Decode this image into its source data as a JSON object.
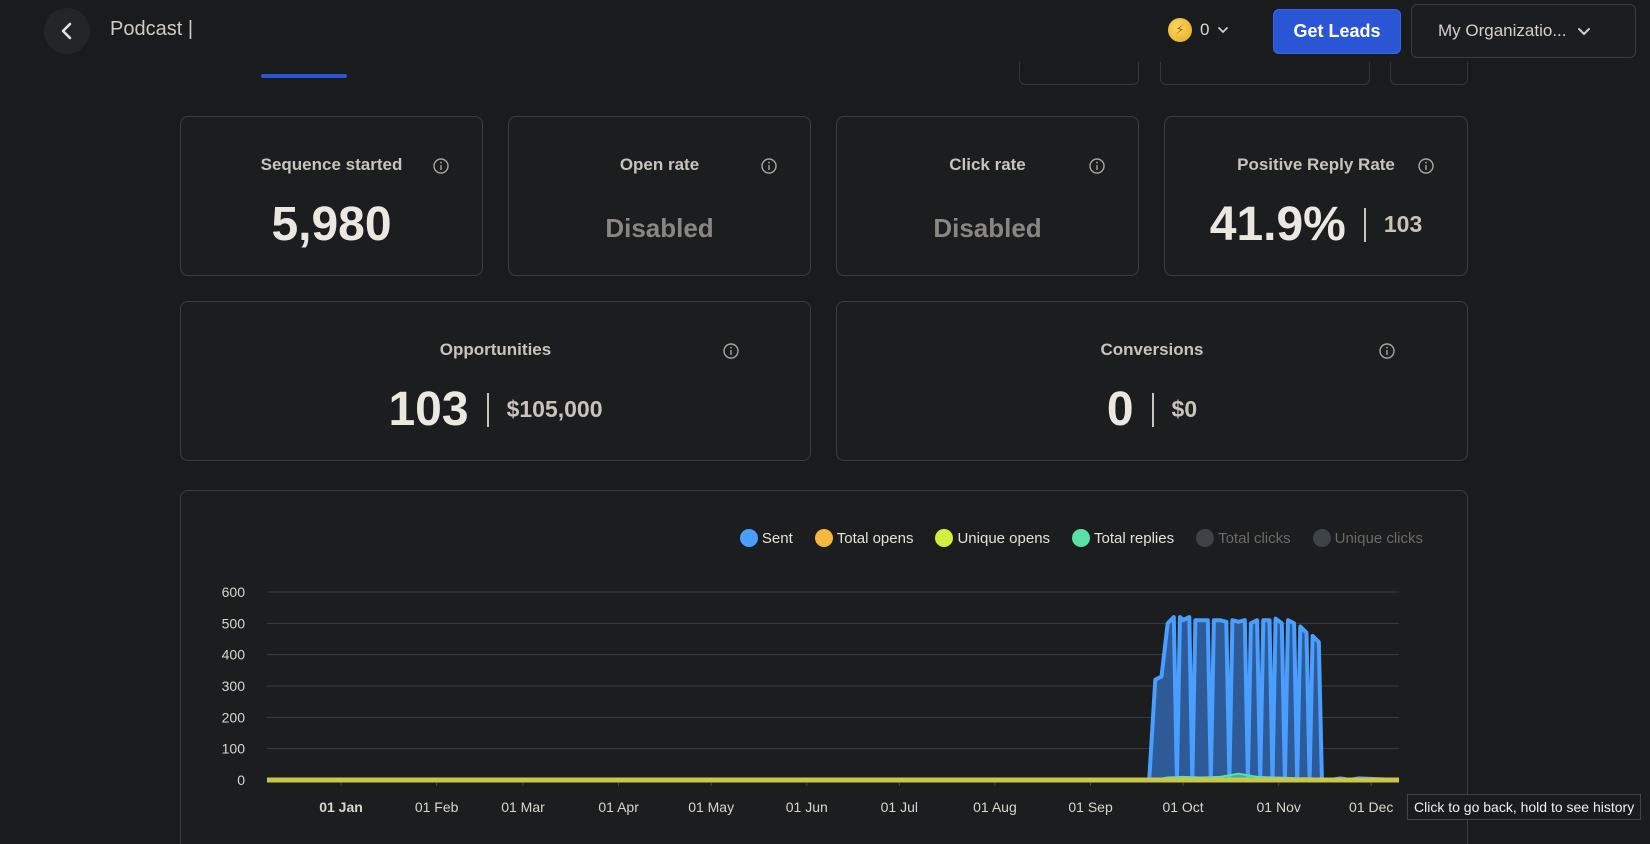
{
  "header": {
    "title": "Podcast |",
    "credits": "0",
    "get_leads_label": "Get Leads",
    "org_label": "My Organizatio..."
  },
  "cards": {
    "sequence_started": {
      "label": "Sequence started",
      "value": "5,980"
    },
    "open_rate": {
      "label": "Open rate",
      "value": "Disabled"
    },
    "click_rate": {
      "label": "Click rate",
      "value": "Disabled"
    },
    "positive_reply_rate": {
      "label": "Positive Reply Rate",
      "value": "41.9%",
      "sub": "103"
    },
    "opportunities": {
      "label": "Opportunities",
      "value": "103",
      "sub": "$105,000"
    },
    "conversions": {
      "label": "Conversions",
      "value": "0",
      "sub": "$0"
    }
  },
  "legend": [
    {
      "label": "Sent",
      "color": "#4a9eff",
      "active": true
    },
    {
      "label": "Total opens",
      "color": "#f5b942",
      "active": true
    },
    {
      "label": "Unique opens",
      "color": "#d4ee3e",
      "active": true
    },
    {
      "label": "Total replies",
      "color": "#58e0a6",
      "active": true
    },
    {
      "label": "Total clicks",
      "color": "#3d4347",
      "active": false
    },
    {
      "label": "Unique clicks",
      "color": "#3d4347",
      "active": false
    }
  ],
  "chart_data": {
    "type": "area",
    "y_ticks": [
      0,
      100,
      200,
      300,
      400,
      500,
      600
    ],
    "ylim": [
      0,
      600
    ],
    "x_ticks": [
      "01 Jan",
      "01 Feb",
      "01 Mar",
      "01 Apr",
      "01 May",
      "01 Jun",
      "01 Jul",
      "01 Aug",
      "01 Sep",
      "01 Oct",
      "01 Nov",
      "01 Dec"
    ],
    "x_days": [
      0,
      31,
      59,
      90,
      120,
      151,
      181,
      212,
      243,
      273,
      304,
      334
    ],
    "xlim_days": [
      -24,
      343
    ],
    "series": [
      {
        "name": "Sent",
        "points": [
          [
            0,
            0
          ],
          [
            262,
            0
          ],
          [
            264,
            320
          ],
          [
            266,
            330
          ],
          [
            268,
            500
          ],
          [
            270,
            520
          ],
          [
            271,
            0
          ],
          [
            272,
            520
          ],
          [
            273,
            510
          ],
          [
            275,
            520
          ],
          [
            276,
            0
          ],
          [
            277,
            510
          ],
          [
            279,
            510
          ],
          [
            281,
            510
          ],
          [
            282,
            0
          ],
          [
            283,
            510
          ],
          [
            285,
            510
          ],
          [
            287,
            505
          ],
          [
            288,
            0
          ],
          [
            289,
            510
          ],
          [
            291,
            505
          ],
          [
            293,
            510
          ],
          [
            294,
            0
          ],
          [
            295,
            500
          ],
          [
            297,
            510
          ],
          [
            298,
            0
          ],
          [
            299,
            510
          ],
          [
            301,
            510
          ],
          [
            302,
            0
          ],
          [
            303,
            515
          ],
          [
            305,
            500
          ],
          [
            306,
            0
          ],
          [
            307,
            510
          ],
          [
            309,
            500
          ],
          [
            310,
            0
          ],
          [
            311,
            490
          ],
          [
            313,
            470
          ],
          [
            314,
            0
          ],
          [
            315,
            460
          ],
          [
            317,
            440
          ],
          [
            318,
            0
          ],
          [
            321,
            0
          ],
          [
            324,
            5
          ],
          [
            327,
            0
          ],
          [
            330,
            5
          ],
          [
            343,
            0
          ]
        ]
      },
      {
        "name": "Total replies",
        "points": [
          [
            0,
            0
          ],
          [
            263,
            0
          ],
          [
            268,
            8
          ],
          [
            273,
            10
          ],
          [
            279,
            8
          ],
          [
            285,
            10
          ],
          [
            291,
            20
          ],
          [
            297,
            10
          ],
          [
            303,
            8
          ],
          [
            309,
            6
          ],
          [
            315,
            5
          ],
          [
            321,
            3
          ],
          [
            330,
            2
          ],
          [
            343,
            0
          ]
        ]
      }
    ]
  },
  "tooltip": "Click to go back, hold to see history"
}
